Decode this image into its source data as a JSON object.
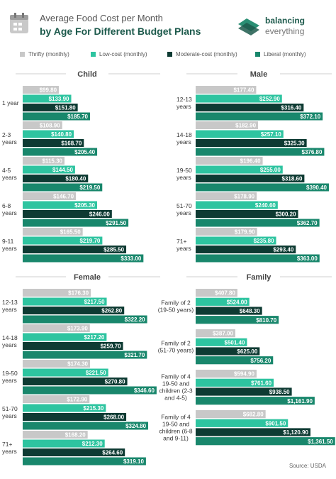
{
  "header": {
    "title_line1": "Average Food Cost per Month",
    "title_line2": "by Age For Different Budget Plans",
    "brand_line1": "balancing",
    "brand_line2": "everything"
  },
  "legend": {
    "items": [
      {
        "label": "Thrifty (monthly)",
        "color": "#c8c8c8"
      },
      {
        "label": "Low-cost (monthly)",
        "color": "#2ec4a0"
      },
      {
        "label": "Moderate-cost (monthly)",
        "color": "#0e3b33"
      },
      {
        "label": "Liberal (monthly)",
        "color": "#19876c"
      }
    ]
  },
  "footer": {
    "source": "Source: USDA"
  },
  "chart_data": [
    {
      "type": "bar",
      "title": "Child",
      "orientation": "horizontal",
      "categories": [
        "1 year",
        "2-3 years",
        "4-5 years",
        "6-8 years",
        "9-11 years"
      ],
      "series": [
        {
          "name": "Thrifty (monthly)",
          "values": [
            99.8,
            108.9,
            115.3,
            146.7,
            165.5
          ],
          "labels": [
            "$99.80",
            "$108.90",
            "$115.30",
            "$146.70",
            "$165.50"
          ]
        },
        {
          "name": "Low-cost (monthly)",
          "values": [
            133.9,
            140.8,
            144.5,
            205.3,
            219.7
          ],
          "labels": [
            "$133.90",
            "$140.80",
            "$144.50",
            "$205.30",
            "$219.70"
          ]
        },
        {
          "name": "Moderate-cost (monthly)",
          "values": [
            151.8,
            168.7,
            180.4,
            246.0,
            285.5
          ],
          "labels": [
            "$151.80",
            "$168.70",
            "$180.40",
            "$246.00",
            "$285.50"
          ]
        },
        {
          "name": "Liberal (monthly)",
          "values": [
            185.7,
            205.4,
            219.5,
            291.5,
            333.0
          ],
          "labels": [
            "$185.70",
            "$205.40",
            "$219.50",
            "$291.50",
            "$333.00"
          ]
        }
      ]
    },
    {
      "type": "bar",
      "title": "Male",
      "orientation": "horizontal",
      "categories": [
        "12-13 years",
        "14-18 years",
        "19-50 years",
        "51-70 years",
        "71+ years"
      ],
      "series": [
        {
          "name": "Thrifty (monthly)",
          "values": [
            177.4,
            182.9,
            196.4,
            178.9,
            179.9
          ],
          "labels": [
            "$177.40",
            "$182.90",
            "$196.40",
            "$178.90",
            "$179.90"
          ]
        },
        {
          "name": "Low-cost (monthly)",
          "values": [
            252.9,
            257.1,
            255.0,
            240.6,
            235.8
          ],
          "labels": [
            "$252.90",
            "$257.10",
            "$255.00",
            "$240.60",
            "$235.80"
          ]
        },
        {
          "name": "Moderate-cost (monthly)",
          "values": [
            316.4,
            325.3,
            318.6,
            300.2,
            293.4
          ],
          "labels": [
            "$316.40",
            "$325.30",
            "$318.60",
            "$300.20",
            "$293.40"
          ]
        },
        {
          "name": "Liberal (monthly)",
          "values": [
            372.1,
            376.8,
            390.4,
            362.7,
            363.0
          ],
          "labels": [
            "$372.10",
            "$376.80",
            "$390.40",
            "$362.70",
            "$363.00"
          ]
        }
      ]
    },
    {
      "type": "bar",
      "title": "Female",
      "orientation": "horizontal",
      "categories": [
        "12-13 years",
        "14-18 years",
        "19-50 years",
        "51-70 years",
        "71+ years"
      ],
      "series": [
        {
          "name": "Thrifty (monthly)",
          "values": [
            176.3,
            173.9,
            174.3,
            172.9,
            168.2
          ],
          "labels": [
            "$176.30",
            "$173.90",
            "$174.30",
            "$172.90",
            "$168.20"
          ]
        },
        {
          "name": "Low-cost (monthly)",
          "values": [
            217.5,
            217.2,
            221.5,
            215.3,
            212.3
          ],
          "labels": [
            "$217.50",
            "$217.20",
            "$221.50",
            "$215.30",
            "$212.30"
          ]
        },
        {
          "name": "Moderate-cost (monthly)",
          "values": [
            262.8,
            259.7,
            270.8,
            268.0,
            264.6
          ],
          "labels": [
            "$262.80",
            "$259.70",
            "$270.80",
            "$268.00",
            "$264.60"
          ]
        },
        {
          "name": "Liberal (monthly)",
          "values": [
            322.2,
            321.7,
            346.6,
            324.8,
            319.1
          ],
          "labels": [
            "$322.20",
            "$321.70",
            "$346.60",
            "$324.80",
            "$319.10"
          ]
        }
      ]
    },
    {
      "type": "bar",
      "title": "Family",
      "orientation": "horizontal",
      "categories": [
        "Family of 2 (19-50 years)",
        "Family of 2 (51-70 years)",
        "Family of 4 19-50 and children (2-3 and 4-5)",
        "Family of 4 19-50 and children (6-8 and 9-11)"
      ],
      "category_lines": [
        [
          "Family of 2",
          "(19-50 years)"
        ],
        [
          "Family of 2",
          "(51-70 years)"
        ],
        [
          "Family of 4",
          "19-50 and",
          "children (2-3",
          "and 4-5)"
        ],
        [
          "Family of 4",
          "19-50 and",
          "children (6-8",
          "and 9-11)"
        ]
      ],
      "series": [
        {
          "name": "Thrifty (monthly)",
          "values": [
            407.8,
            387.0,
            594.9,
            682.8
          ],
          "labels": [
            "$407.80",
            "$387.00",
            "$594.90",
            "$682.80"
          ]
        },
        {
          "name": "Low-cost (monthly)",
          "values": [
            524.0,
            501.4,
            761.6,
            901.5
          ],
          "labels": [
            "$524.00",
            "$501.40",
            "$761.60",
            "$901.50"
          ]
        },
        {
          "name": "Moderate-cost (monthly)",
          "values": [
            648.3,
            625.0,
            938.5,
            1120.9
          ],
          "labels": [
            "$648.30",
            "$625.00",
            "$938.50",
            "$1,120.90"
          ]
        },
        {
          "name": "Liberal (monthly)",
          "values": [
            810.7,
            756.2,
            1161.9,
            1361.5
          ],
          "labels": [
            "$810.70",
            "$756.20",
            "$1,161.90",
            "$1,361.50"
          ]
        }
      ]
    }
  ]
}
